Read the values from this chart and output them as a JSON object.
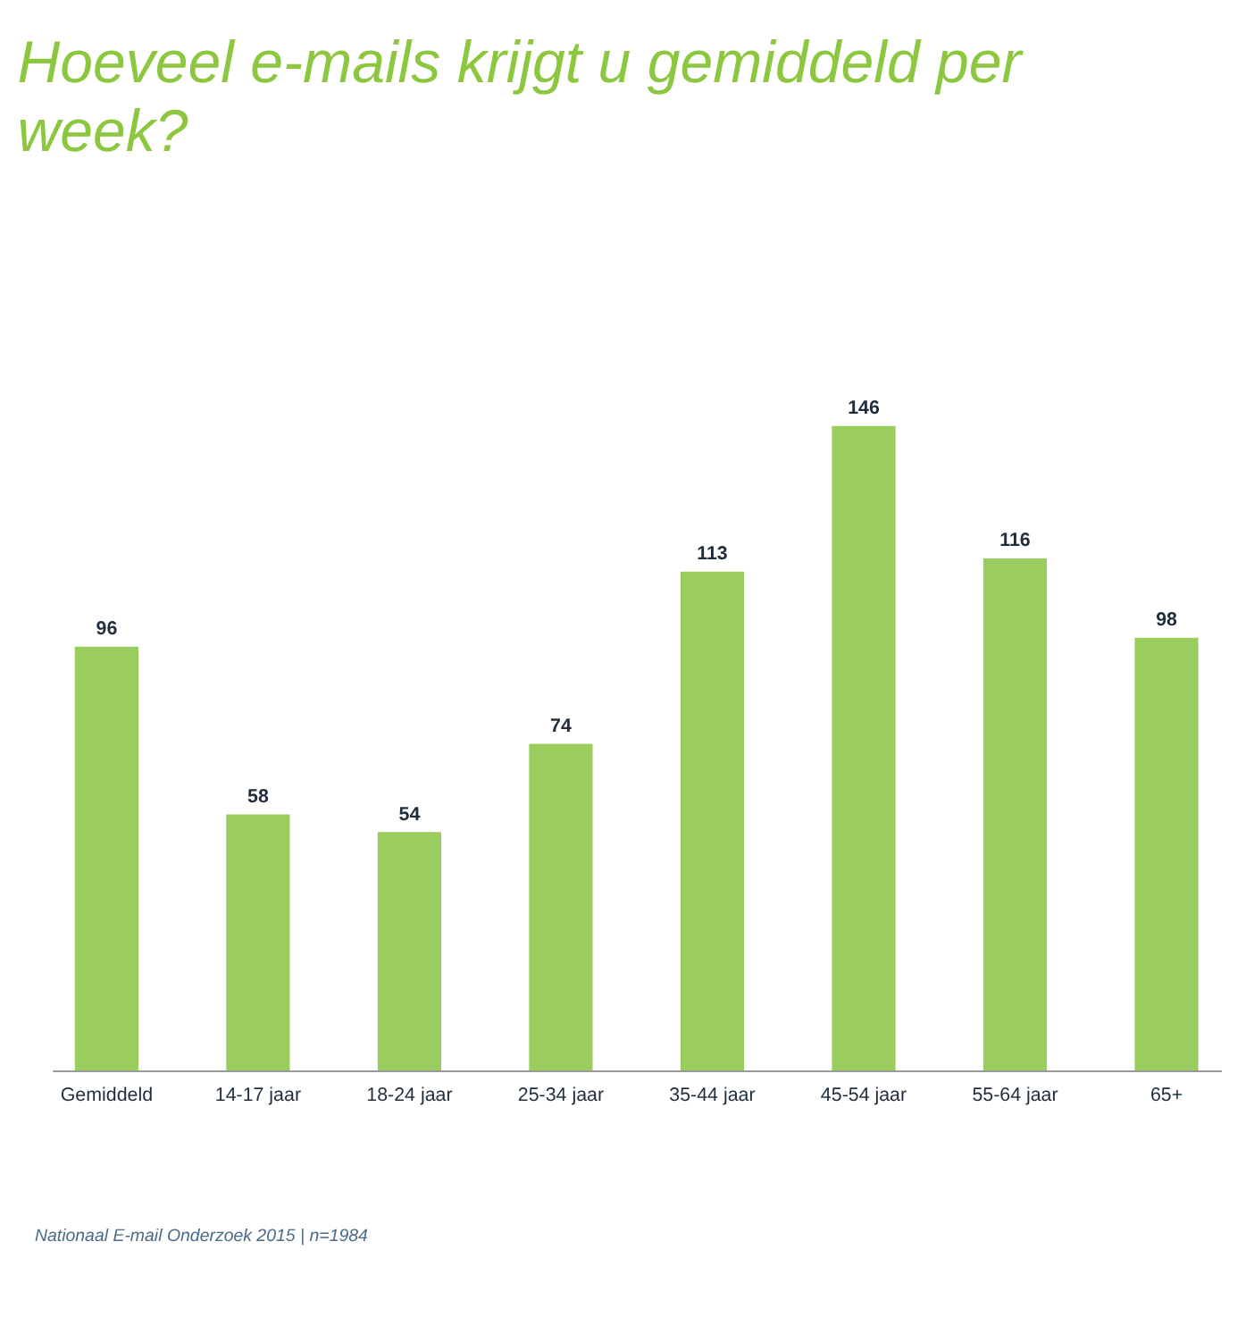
{
  "chart_data": {
    "type": "bar",
    "title": "Hoeveel e-mails krijgt u gemiddeld per week?",
    "categories": [
      "Gemiddeld",
      "14-17 jaar",
      "18-24 jaar",
      "25-34 jaar",
      "35-44 jaar",
      "45-54 jaar",
      "55-64 jaar",
      "65+"
    ],
    "values": [
      96,
      58,
      54,
      74,
      113,
      146,
      116,
      98
    ],
    "color": "#9bcd5e",
    "data_labels": true,
    "annotations": [
      "Nationaal E-mail Onderzoek 2015 | n=1984"
    ]
  }
}
